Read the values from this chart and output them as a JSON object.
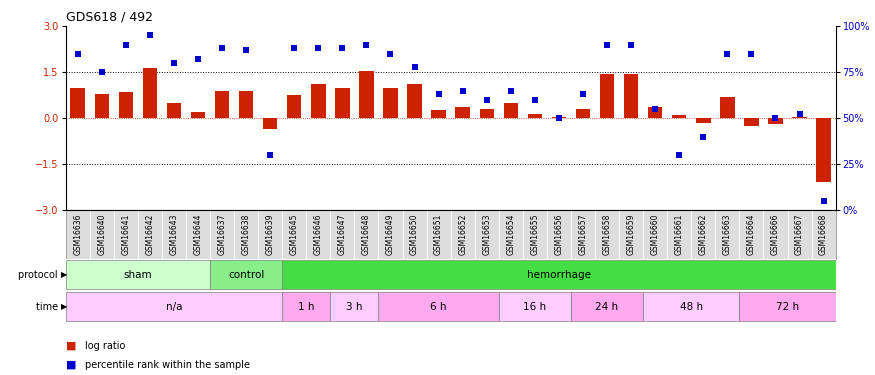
{
  "title": "GDS618 / 492",
  "samples": [
    "GSM16636",
    "GSM16640",
    "GSM16641",
    "GSM16642",
    "GSM16643",
    "GSM16644",
    "GSM16637",
    "GSM16638",
    "GSM16639",
    "GSM16645",
    "GSM16646",
    "GSM16647",
    "GSM16648",
    "GSM16649",
    "GSM16650",
    "GSM16651",
    "GSM16652",
    "GSM16653",
    "GSM16654",
    "GSM16655",
    "GSM16656",
    "GSM16657",
    "GSM16658",
    "GSM16659",
    "GSM16660",
    "GSM16661",
    "GSM16662",
    "GSM16663",
    "GSM16664",
    "GSM16666",
    "GSM16667",
    "GSM16668"
  ],
  "log_ratio": [
    1.0,
    0.8,
    0.85,
    1.65,
    0.5,
    0.2,
    0.9,
    0.9,
    -0.35,
    0.75,
    1.1,
    1.0,
    1.55,
    1.0,
    1.1,
    0.25,
    0.35,
    0.3,
    0.5,
    0.15,
    0.05,
    0.3,
    1.45,
    1.45,
    0.35,
    0.1,
    -0.15,
    0.7,
    -0.25,
    -0.2,
    0.05,
    -2.1
  ],
  "percentile": [
    85,
    75,
    90,
    95,
    80,
    82,
    88,
    87,
    30,
    88,
    88,
    88,
    90,
    85,
    78,
    63,
    65,
    60,
    65,
    60,
    50,
    63,
    90,
    90,
    55,
    30,
    40,
    85,
    85,
    50,
    52,
    5
  ],
  "protocol_groups": [
    {
      "label": "sham",
      "start": 0,
      "end": 5,
      "color": "#ccffcc"
    },
    {
      "label": "control",
      "start": 6,
      "end": 8,
      "color": "#88ee88"
    },
    {
      "label": "hemorrhage",
      "start": 9,
      "end": 31,
      "color": "#44dd44"
    }
  ],
  "time_groups": [
    {
      "label": "n/a",
      "start": 0,
      "end": 8,
      "color": "#ffccff"
    },
    {
      "label": "1 h",
      "start": 9,
      "end": 10,
      "color": "#ffaaee"
    },
    {
      "label": "3 h",
      "start": 11,
      "end": 12,
      "color": "#ffccff"
    },
    {
      "label": "6 h",
      "start": 13,
      "end": 17,
      "color": "#ffaaee"
    },
    {
      "label": "16 h",
      "start": 18,
      "end": 20,
      "color": "#ffccff"
    },
    {
      "label": "24 h",
      "start": 21,
      "end": 23,
      "color": "#ffaaee"
    },
    {
      "label": "48 h",
      "start": 24,
      "end": 27,
      "color": "#ffccff"
    },
    {
      "label": "72 h",
      "start": 28,
      "end": 31,
      "color": "#ffaaee"
    }
  ],
  "bar_color": "#cc2200",
  "dot_color": "#0000cc",
  "ylim": [
    -3,
    3
  ],
  "y2lim": [
    0,
    100
  ],
  "yticks": [
    -3,
    -1.5,
    0,
    1.5,
    3
  ],
  "y2ticks": [
    0,
    25,
    50,
    75,
    100
  ],
  "hlines_black": [
    -1.5,
    1.5
  ],
  "hline_red": 0.0,
  "title_fontsize": 9,
  "tick_fontsize": 5.5,
  "label_fontsize": 7.5,
  "background_color": "#ffffff",
  "gsm_box_color": "#dddddd"
}
